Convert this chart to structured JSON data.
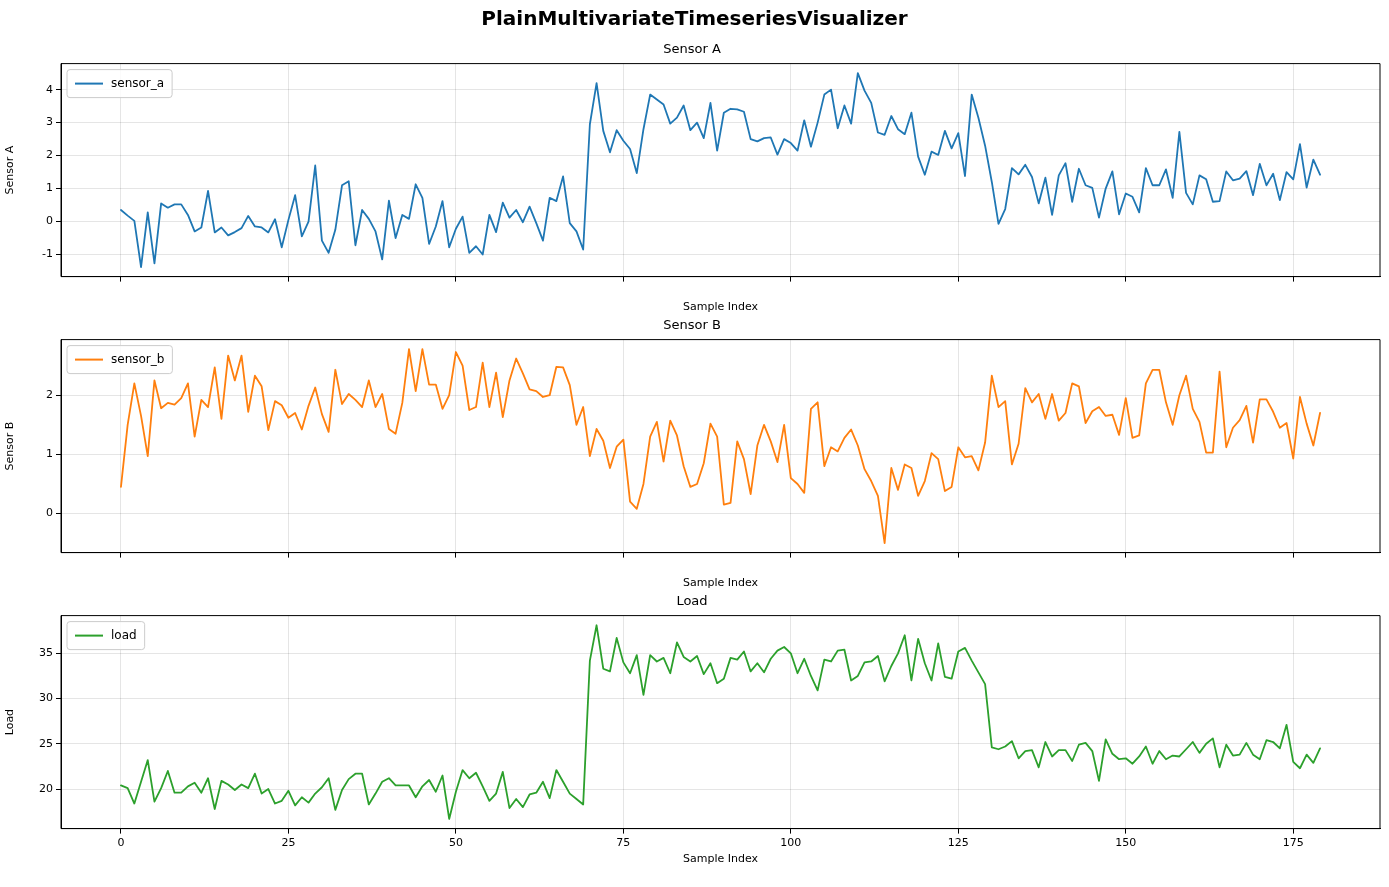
{
  "chart_data": [
    {
      "type": "line",
      "title": "Sensor A",
      "annotations": [
        "PlainMultivariateTimeseriesVisualizer"
      ],
      "xlabel": "Sample Index",
      "ylabel": "Sensor A",
      "x": [
        0,
        1,
        2,
        3,
        4,
        5,
        6,
        7,
        8,
        9,
        10,
        11,
        12,
        13,
        14,
        15,
        16,
        17,
        18,
        19,
        20,
        21,
        22,
        23,
        24,
        25,
        26,
        27,
        28,
        29,
        30,
        31,
        32,
        33,
        34,
        35,
        36,
        37,
        38,
        39,
        40,
        41,
        42,
        43,
        44,
        45,
        46,
        47,
        48,
        49,
        50,
        51,
        52,
        53,
        54,
        55,
        56,
        57,
        58,
        59,
        60,
        61,
        62,
        63,
        64,
        65,
        66,
        67,
        68,
        69,
        70,
        71,
        72,
        73,
        74,
        75,
        76,
        77,
        78,
        79,
        80,
        81,
        82,
        83,
        84,
        85,
        86,
        87,
        88,
        89,
        90,
        91,
        92,
        93,
        94,
        95,
        96,
        97,
        98,
        99,
        100,
        101,
        102,
        103,
        104,
        105,
        106,
        107,
        108,
        109,
        110,
        111,
        112,
        113,
        114,
        115,
        116,
        117,
        118,
        119,
        120,
        121,
        122,
        123,
        124,
        125,
        126,
        127,
        128,
        129,
        130,
        131,
        132,
        133,
        134,
        135,
        136,
        137,
        138,
        139,
        140,
        141,
        142,
        143,
        144,
        145,
        146,
        147,
        148,
        149,
        150,
        151,
        152,
        153,
        154,
        155,
        156,
        157,
        158,
        159,
        160,
        161,
        162,
        163,
        164,
        165,
        166,
        167,
        168,
        169,
        170,
        171,
        172,
        173,
        174,
        175,
        176,
        177,
        178,
        179
      ],
      "series": [
        {
          "name": "sensor_a",
          "color": "#1f77b4",
          "values": [
            0.35,
            0.18,
            0.02,
            -1.38,
            0.28,
            -1.27,
            0.55,
            0.42,
            0.52,
            0.52,
            0.2,
            -0.3,
            -0.18,
            0.93,
            -0.33,
            -0.18,
            -0.42,
            -0.32,
            -0.2,
            0.17,
            -0.15,
            -0.18,
            -0.33,
            0.07,
            -0.78,
            0.05,
            0.8,
            -0.45,
            0.0,
            1.7,
            -0.58,
            -0.95,
            -0.25,
            1.1,
            1.22,
            -0.72,
            0.35,
            0.08,
            -0.3,
            -1.15,
            0.63,
            -0.5,
            0.2,
            0.08,
            1.13,
            0.72,
            -0.68,
            -0.15,
            0.62,
            -0.78,
            -0.22,
            0.15,
            -0.95,
            -0.75,
            -1.0,
            0.2,
            -0.32,
            0.57,
            0.12,
            0.35,
            -0.02,
            0.45,
            -0.05,
            -0.58,
            0.72,
            0.62,
            1.37,
            -0.05,
            -0.3,
            -0.85,
            2.95,
            4.2,
            2.75,
            2.1,
            2.77,
            2.45,
            2.2,
            1.47,
            2.8,
            3.85,
            3.7,
            3.55,
            2.97,
            3.15,
            3.52,
            2.77,
            3.0,
            2.53,
            3.6,
            2.15,
            3.3,
            3.42,
            3.4,
            3.33,
            2.5,
            2.43,
            2.53,
            2.55,
            2.03,
            2.5,
            2.38,
            2.15,
            3.07,
            2.27,
            3.0,
            3.85,
            4.0,
            2.83,
            3.52,
            2.97,
            4.5,
            3.97,
            3.6,
            2.7,
            2.63,
            3.2,
            2.8,
            2.65,
            3.3,
            1.97,
            1.42,
            2.12,
            2.02,
            2.75,
            2.22,
            2.68,
            1.38,
            3.85,
            3.15,
            2.3,
            1.2,
            -0.07,
            0.38,
            1.62,
            1.43,
            1.72,
            1.35,
            0.55,
            1.33,
            0.2,
            1.4,
            1.77,
            0.6,
            1.6,
            1.1,
            1.02,
            0.12,
            1.0,
            1.52,
            0.22,
            0.85,
            0.75,
            0.28,
            1.62,
            1.1,
            1.1,
            1.58,
            0.72,
            2.72,
            0.87,
            0.52,
            1.4,
            1.28,
            0.6,
            0.62,
            1.52,
            1.25,
            1.3,
            1.53,
            0.8,
            1.75,
            1.1,
            1.45,
            0.65,
            1.5,
            1.28,
            2.35,
            1.03,
            1.88,
            1.42
          ]
        }
      ],
      "xlim": [
        -8.95,
        187.95
      ],
      "xticks": [
        0,
        25,
        50,
        75,
        100,
        125,
        150,
        175
      ],
      "ylim": [
        -1.67,
        4.79
      ],
      "yticks": [
        -1,
        0,
        1,
        2,
        3,
        4
      ],
      "grid": true,
      "legend": "top left",
      "tick_labels": "y",
      "marker": "none",
      "line_style": "solid"
    },
    {
      "type": "line",
      "title": "Sensor B",
      "xlabel": "Sample Index",
      "ylabel": "Sensor B",
      "x": [
        0,
        1,
        2,
        3,
        4,
        5,
        6,
        7,
        8,
        9,
        10,
        11,
        12,
        13,
        14,
        15,
        16,
        17,
        18,
        19,
        20,
        21,
        22,
        23,
        24,
        25,
        26,
        27,
        28,
        29,
        30,
        31,
        32,
        33,
        34,
        35,
        36,
        37,
        38,
        39,
        40,
        41,
        42,
        43,
        44,
        45,
        46,
        47,
        48,
        49,
        50,
        51,
        52,
        53,
        54,
        55,
        56,
        57,
        58,
        59,
        60,
        61,
        62,
        63,
        64,
        65,
        66,
        67,
        68,
        69,
        70,
        71,
        72,
        73,
        74,
        75,
        76,
        77,
        78,
        79,
        80,
        81,
        82,
        83,
        84,
        85,
        86,
        87,
        88,
        89,
        90,
        91,
        92,
        93,
        94,
        95,
        96,
        97,
        98,
        99,
        100,
        101,
        102,
        103,
        104,
        105,
        106,
        107,
        108,
        109,
        110,
        111,
        112,
        113,
        114,
        115,
        116,
        117,
        118,
        119,
        120,
        121,
        122,
        123,
        124,
        125,
        126,
        127,
        128,
        129,
        130,
        131,
        132,
        133,
        134,
        135,
        136,
        137,
        138,
        139,
        140,
        141,
        142,
        143,
        144,
        145,
        146,
        147,
        148,
        149,
        150,
        151,
        152,
        153,
        154,
        155,
        156,
        157,
        158,
        159,
        160,
        161,
        162,
        163,
        164,
        165,
        166,
        167,
        168,
        169,
        170,
        171,
        172,
        173,
        174,
        175,
        176,
        177,
        178,
        179
      ],
      "series": [
        {
          "name": "sensor_b",
          "color": "#ff7f0e",
          "values": [
            0.45,
            1.5,
            2.2,
            1.65,
            0.97,
            2.25,
            1.78,
            1.87,
            1.84,
            1.95,
            2.2,
            1.3,
            1.92,
            1.8,
            2.47,
            1.6,
            2.67,
            2.25,
            2.67,
            1.72,
            2.33,
            2.15,
            1.41,
            1.9,
            1.83,
            1.62,
            1.7,
            1.42,
            1.82,
            2.13,
            1.68,
            1.38,
            2.43,
            1.85,
            2.02,
            1.92,
            1.8,
            2.25,
            1.8,
            2.02,
            1.43,
            1.35,
            1.87,
            2.78,
            2.07,
            2.78,
            2.18,
            2.18,
            1.77,
            2.0,
            2.73,
            2.5,
            1.75,
            1.8,
            2.55,
            1.8,
            2.38,
            1.63,
            2.25,
            2.62,
            2.37,
            2.1,
            2.07,
            1.97,
            2.0,
            2.48,
            2.47,
            2.17,
            1.5,
            1.8,
            0.97,
            1.43,
            1.23,
            0.77,
            1.13,
            1.25,
            0.2,
            0.08,
            0.5,
            1.3,
            1.55,
            0.88,
            1.57,
            1.32,
            0.8,
            0.45,
            0.5,
            0.85,
            1.52,
            1.3,
            0.15,
            0.18,
            1.22,
            0.92,
            0.33,
            1.15,
            1.5,
            1.22,
            0.87,
            1.5,
            0.6,
            0.5,
            0.35,
            1.77,
            1.88,
            0.8,
            1.12,
            1.05,
            1.28,
            1.42,
            1.15,
            0.75,
            0.55,
            0.3,
            -0.5,
            0.77,
            0.4,
            0.83,
            0.77,
            0.3,
            0.55,
            1.02,
            0.92,
            0.38,
            0.45,
            1.12,
            0.95,
            0.97,
            0.73,
            1.2,
            2.33,
            1.8,
            1.9,
            0.83,
            1.18,
            2.12,
            1.88,
            2.02,
            1.6,
            2.02,
            1.57,
            1.7,
            2.2,
            2.15,
            1.53,
            1.73,
            1.8,
            1.65,
            1.67,
            1.33,
            1.95,
            1.28,
            1.32,
            2.2,
            2.43,
            2.43,
            1.88,
            1.5,
            2.0,
            2.33,
            1.77,
            1.55,
            1.03,
            1.03,
            2.4,
            1.12,
            1.45,
            1.58,
            1.82,
            1.2,
            1.93,
            1.93,
            1.72,
            1.45,
            1.53,
            0.93,
            1.97,
            1.52,
            1.15,
            1.7
          ]
        }
      ],
      "xlim": [
        -8.95,
        187.95
      ],
      "xticks": [
        0,
        25,
        50,
        75,
        100,
        125,
        150,
        175
      ],
      "ylim": [
        -0.66,
        2.94
      ],
      "yticks": [
        0,
        1,
        2
      ],
      "grid": true,
      "legend": "top left",
      "tick_labels": "y",
      "marker": "none",
      "line_style": "solid"
    },
    {
      "type": "line",
      "title": "Load",
      "xlabel": "Sample Index",
      "ylabel": "Load",
      "x": [
        0,
        1,
        2,
        3,
        4,
        5,
        6,
        7,
        8,
        9,
        10,
        11,
        12,
        13,
        14,
        15,
        16,
        17,
        18,
        19,
        20,
        21,
        22,
        23,
        24,
        25,
        26,
        27,
        28,
        29,
        30,
        31,
        32,
        33,
        34,
        35,
        36,
        37,
        38,
        39,
        40,
        41,
        42,
        43,
        44,
        45,
        46,
        47,
        48,
        49,
        50,
        51,
        52,
        53,
        54,
        55,
        56,
        57,
        58,
        59,
        60,
        61,
        62,
        63,
        64,
        65,
        66,
        67,
        68,
        69,
        70,
        71,
        72,
        73,
        74,
        75,
        76,
        77,
        78,
        79,
        80,
        81,
        82,
        83,
        84,
        85,
        86,
        87,
        88,
        89,
        90,
        91,
        92,
        93,
        94,
        95,
        96,
        97,
        98,
        99,
        100,
        101,
        102,
        103,
        104,
        105,
        106,
        107,
        108,
        109,
        110,
        111,
        112,
        113,
        114,
        115,
        116,
        117,
        118,
        119,
        120,
        121,
        122,
        123,
        124,
        125,
        126,
        127,
        128,
        129,
        130,
        131,
        132,
        133,
        134,
        135,
        136,
        137,
        138,
        139,
        140,
        141,
        142,
        143,
        144,
        145,
        146,
        147,
        148,
        149,
        150,
        151,
        152,
        153,
        154,
        155,
        156,
        157,
        158,
        159,
        160,
        161,
        162,
        163,
        164,
        165,
        166,
        167,
        168,
        169,
        170,
        171,
        172,
        173,
        174,
        175,
        176,
        177,
        178,
        179
      ],
      "series": [
        {
          "name": "load",
          "color": "#2ca02c",
          "values": [
            20.4,
            20.1,
            18.4,
            20.8,
            23.2,
            18.6,
            20.1,
            22.0,
            19.6,
            19.6,
            20.3,
            20.7,
            19.6,
            21.2,
            17.8,
            20.9,
            20.5,
            19.9,
            20.5,
            20.1,
            21.7,
            19.5,
            20.0,
            18.4,
            18.7,
            19.8,
            18.2,
            19.1,
            18.5,
            19.5,
            20.2,
            21.2,
            17.7,
            19.9,
            21.1,
            21.7,
            21.7,
            18.3,
            19.5,
            20.8,
            21.2,
            20.4,
            20.4,
            20.4,
            19.1,
            20.3,
            21.0,
            19.7,
            21.5,
            16.7,
            19.7,
            22.1,
            21.2,
            21.8,
            20.3,
            18.7,
            19.5,
            21.9,
            17.9,
            18.9,
            18.0,
            19.4,
            19.6,
            20.8,
            19.0,
            22.1,
            20.8,
            19.5,
            18.9,
            18.3,
            34.2,
            38.1,
            33.3,
            33.0,
            36.7,
            34.0,
            32.8,
            34.8,
            30.4,
            34.8,
            34.1,
            34.5,
            32.8,
            36.2,
            34.6,
            34.1,
            34.7,
            32.7,
            33.9,
            31.7,
            32.2,
            34.5,
            34.3,
            35.2,
            33.0,
            33.9,
            32.9,
            34.4,
            35.3,
            35.7,
            35.0,
            32.8,
            34.4,
            32.5,
            30.9,
            34.3,
            34.1,
            35.3,
            35.4,
            32.0,
            32.5,
            34.0,
            34.1,
            34.7,
            31.9,
            33.6,
            35.0,
            37.0,
            32.0,
            36.6,
            33.9,
            32.0,
            36.1,
            32.4,
            32.2,
            35.2,
            35.6,
            34.2,
            32.9,
            31.6,
            24.6,
            24.4,
            24.7,
            25.3,
            23.4,
            24.2,
            24.3,
            22.4,
            25.2,
            23.6,
            24.3,
            24.3,
            23.1,
            24.9,
            25.1,
            24.2,
            20.9,
            25.5,
            23.9,
            23.3,
            23.4,
            22.8,
            23.6,
            24.7,
            22.8,
            24.2,
            23.3,
            23.7,
            23.6,
            24.4,
            25.2,
            24.0,
            25.0,
            25.6,
            22.4,
            24.9,
            23.7,
            23.8,
            25.1,
            23.8,
            23.3,
            25.4,
            25.2,
            24.5,
            27.1,
            23.0,
            22.3,
            23.8,
            22.9,
            24.5
          ]
        }
      ],
      "xlim": [
        -8.95,
        187.95
      ],
      "xticks": [
        0,
        25,
        50,
        75,
        100,
        125,
        150,
        175
      ],
      "ylim": [
        15.63,
        39.17
      ],
      "yticks": [
        20,
        25,
        30,
        35
      ],
      "grid": true,
      "legend": "top left",
      "marker": "none",
      "line_style": "solid"
    }
  ]
}
